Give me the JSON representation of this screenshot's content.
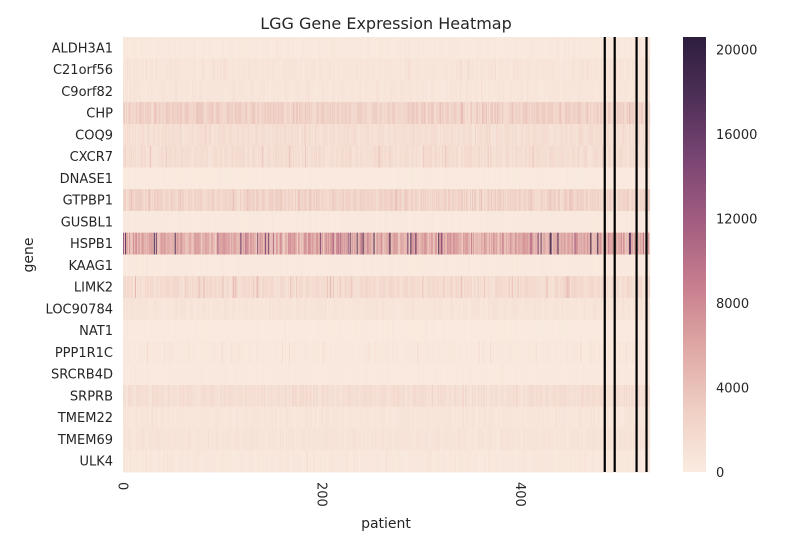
{
  "chart_data": {
    "type": "heatmap",
    "title": "LGG Gene Expression Heatmap",
    "xlabel": "patient",
    "ylabel": "gene",
    "n_patients": 530,
    "x_tick_labels": [
      "0",
      "200",
      "400"
    ],
    "x_tick_values": [
      0,
      200,
      400
    ],
    "genes": [
      "ALDH3A1",
      "C21orf56",
      "C9orf82",
      "CHP",
      "COQ9",
      "CXCR7",
      "DNASE1",
      "GTPBP1",
      "GUSBL1",
      "HSPB1",
      "KAAG1",
      "LIMK2",
      "LOC90784",
      "NAT1",
      "PPP1R1C",
      "SRCRB4D",
      "SRPRB",
      "TMEM22",
      "TMEM69",
      "ULK4"
    ],
    "approx_mean_expression": [
      300,
      650,
      550,
      2500,
      1300,
      1400,
      200,
      2300,
      250,
      5500,
      250,
      1600,
      700,
      200,
      350,
      250,
      1300,
      600,
      750,
      400
    ],
    "approx_max_expression": [
      900,
      2000,
      1500,
      4500,
      2500,
      4000,
      400,
      4500,
      500,
      20000,
      600,
      5000,
      1400,
      500,
      1800,
      600,
      2500,
      1200,
      1500,
      1200
    ],
    "colorbar": {
      "min": 0,
      "max": 20600,
      "tick_labels": [
        "0",
        "4000",
        "8000",
        "12000",
        "16000",
        "20000"
      ],
      "tick_values": [
        0,
        4000,
        8000,
        12000,
        16000,
        20000
      ],
      "colormap": [
        "#faebe0",
        "#efcfc4",
        "#dfa8a4",
        "#c77e8e",
        "#a35e81",
        "#7b4674",
        "#4f3057",
        "#2d1e3e"
      ]
    },
    "missing_patient_columns": [
      484,
      494,
      516,
      526
    ],
    "grid": false,
    "legend": "colorbar-right"
  }
}
